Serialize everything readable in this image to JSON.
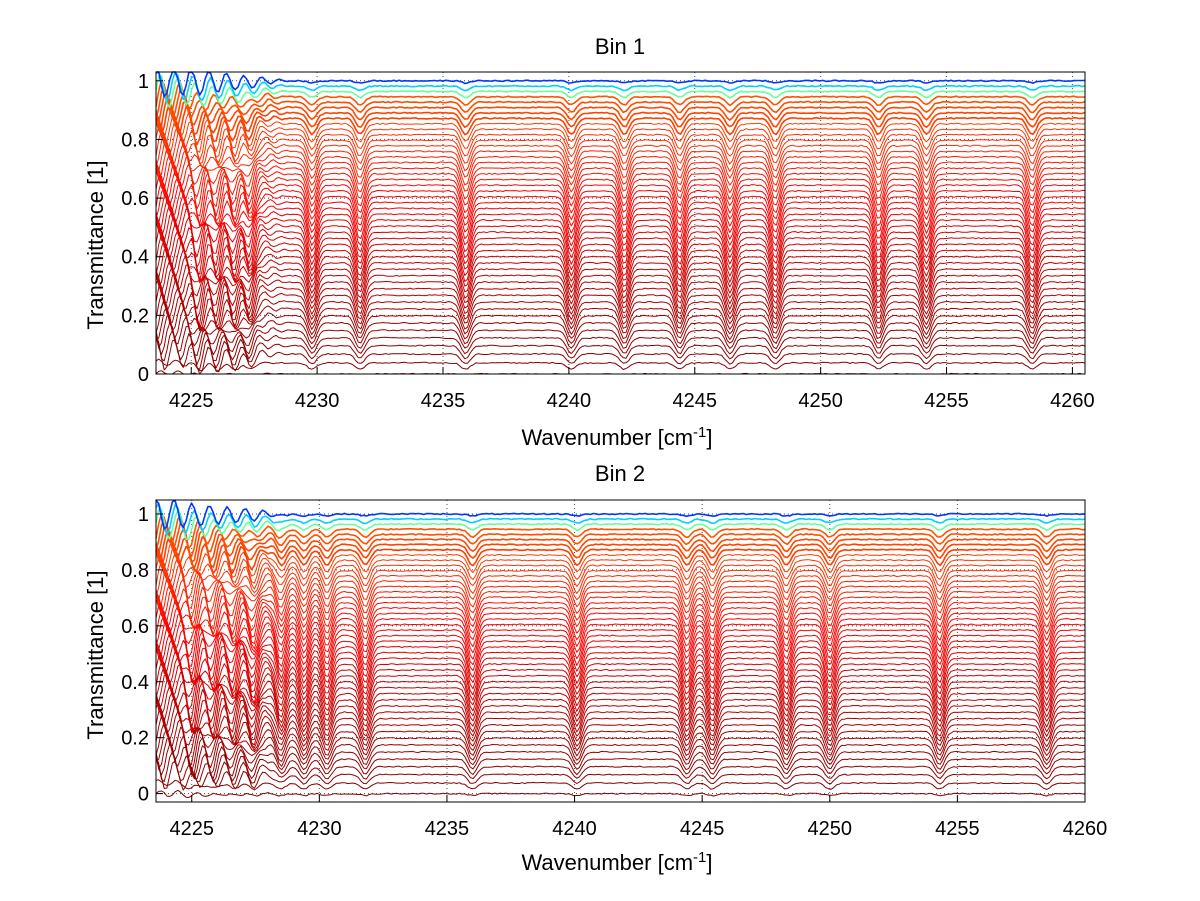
{
  "chart_data": [
    {
      "type": "line",
      "title": "Bin 1",
      "xlabel": "Wavenumber [cm",
      "xlabel_sup": "-1",
      "xlabel_end": "]",
      "ylabel": "Transmittance [1]",
      "xlim": [
        4223.6,
        4260.5
      ],
      "ylim": [
        0,
        1.03
      ],
      "xticks": [
        4225,
        4230,
        4235,
        4240,
        4245,
        4250,
        4255,
        4260
      ],
      "xtick_labels": [
        "4225",
        "4230",
        "4235",
        "4240",
        "4245",
        "4250",
        "4255",
        "4260"
      ],
      "yticks": [
        0,
        0.2,
        0.4,
        0.6,
        0.8,
        1
      ],
      "ytick_labels": [
        "0",
        "0.2",
        "0.4",
        "0.6",
        "0.8",
        "1"
      ],
      "grid": true,
      "legend": "none",
      "colormap": "jet, blue at transmittance 1 through orange to dark red near 0",
      "series_count": 48,
      "series_level_range": [
        0.0,
        1.0
      ],
      "absorption_lines": [
        4225.3,
        4226.0,
        4226.7,
        4227.3,
        4229.8,
        4231.7,
        4235.9,
        4240.1,
        4242.2,
        4244.4,
        4246.4,
        4248.2,
        4252.3,
        4254.2,
        4258.4
      ]
    },
    {
      "type": "line",
      "title": "Bin 2",
      "xlabel": "Wavenumber [cm",
      "xlabel_sup": "-1",
      "xlabel_end": "]",
      "ylabel": "Transmittance [1]",
      "xlim": [
        4223.6,
        4260.0
      ],
      "ylim": [
        -0.03,
        1.05
      ],
      "xticks": [
        4225,
        4230,
        4235,
        4240,
        4245,
        4250,
        4255,
        4260
      ],
      "xtick_labels": [
        "4225",
        "4230",
        "4235",
        "4240",
        "4245",
        "4250",
        "4255",
        "4260"
      ],
      "yticks": [
        0,
        0.2,
        0.4,
        0.6,
        0.8,
        1
      ],
      "ytick_labels": [
        "0",
        "0.2",
        "0.4",
        "0.6",
        "0.8",
        "1"
      ],
      "grid": true,
      "legend": "none",
      "colormap": "jet, blue at transmittance 1 through orange to dark red near 0",
      "series_count": 48,
      "series_level_range": [
        0.0,
        1.0
      ],
      "absorption_lines": [
        4225.0,
        4225.8,
        4226.6,
        4227.4,
        4228.5,
        4229.4,
        4230.3,
        4231.8,
        4236.0,
        4240.1,
        4244.4,
        4245.4,
        4248.3,
        4250.0,
        4254.3,
        4258.5
      ]
    }
  ]
}
